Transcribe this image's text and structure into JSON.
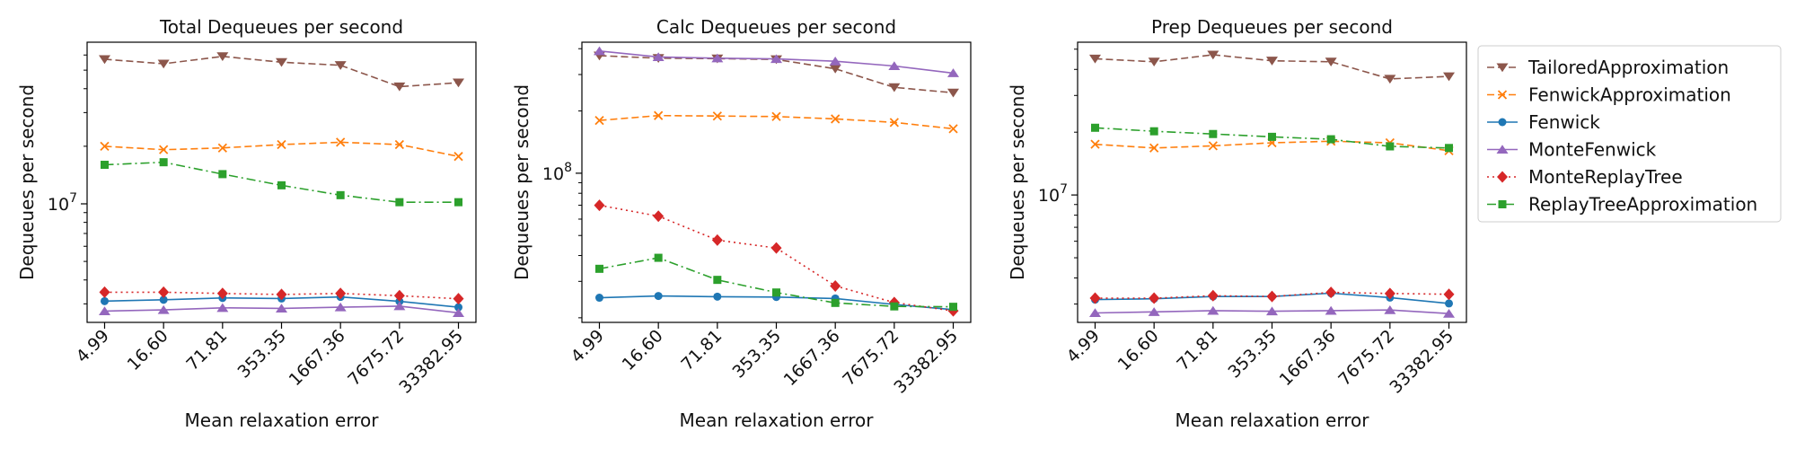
{
  "chart_data": [
    {
      "type": "line",
      "title": "Total Dequeues per second",
      "xlabel": "Mean relaxation error",
      "ylabel": "Dequeues per second",
      "yscale": "log",
      "ylim": [
        2400000,
        70000000
      ],
      "yticks": [
        {
          "value": 10000000,
          "base": "10",
          "exp": "7"
        }
      ],
      "grid": false,
      "categories": [
        "4.99",
        "16.60",
        "71.81",
        "353.35",
        "1667.36",
        "7675.72",
        "33382.95"
      ],
      "series": [
        {
          "name": "TailoredApproximation",
          "values": [
            57000000,
            54000000,
            59000000,
            55000000,
            53000000,
            41000000,
            43000000
          ]
        },
        {
          "name": "FenwickApproximation",
          "values": [
            20000000,
            19200000,
            19600000,
            20400000,
            21000000,
            20400000,
            17700000
          ]
        },
        {
          "name": "Fenwick",
          "values": [
            3100000,
            3150000,
            3220000,
            3200000,
            3260000,
            3090000,
            2880000
          ]
        },
        {
          "name": "MonteFenwick",
          "values": [
            2750000,
            2790000,
            2860000,
            2840000,
            2880000,
            2920000,
            2690000
          ]
        },
        {
          "name": "MonteReplayTree",
          "values": [
            3450000,
            3450000,
            3400000,
            3360000,
            3400000,
            3310000,
            3190000
          ]
        },
        {
          "name": "ReplayTreeApproximation",
          "values": [
            16000000,
            16500000,
            14300000,
            12500000,
            11100000,
            10200000,
            10200000
          ]
        }
      ]
    },
    {
      "type": "line",
      "title": "Calc Dequeues per second",
      "xlabel": "Mean relaxation error",
      "ylabel": "Dequeues per second",
      "yscale": "log",
      "ylim": [
        19000000,
        430000000
      ],
      "yticks": [
        {
          "value": 100000000,
          "base": "10",
          "exp": "8"
        }
      ],
      "grid": false,
      "categories": [
        "4.99",
        "16.60",
        "71.81",
        "353.35",
        "1667.36",
        "7675.72",
        "33382.95"
      ],
      "series": [
        {
          "name": "TailoredApproximation",
          "values": [
            370000000,
            360000000,
            358000000,
            355000000,
            320000000,
            260000000,
            245000000
          ]
        },
        {
          "name": "FenwickApproximation",
          "values": [
            180000000,
            190000000,
            189000000,
            188000000,
            183000000,
            176000000,
            164000000
          ]
        },
        {
          "name": "Fenwick",
          "values": [
            25000000,
            25500000,
            25300000,
            25200000,
            24800000,
            23200000,
            21900000
          ]
        },
        {
          "name": "MonteFenwick",
          "values": [
            390000000,
            365000000,
            360000000,
            357000000,
            348000000,
            330000000,
            305000000
          ]
        },
        {
          "name": "MonteReplayTree",
          "values": [
            70000000,
            62000000,
            47500000,
            43500000,
            28500000,
            23700000,
            21600000
          ]
        },
        {
          "name": "ReplayTreeApproximation",
          "values": [
            34500000,
            39000000,
            30500000,
            26500000,
            23600000,
            22700000,
            22600000
          ]
        }
      ]
    },
    {
      "type": "line",
      "title": "Prep Dequeues per second",
      "xlabel": "Mean relaxation error",
      "ylabel": "Dequeues per second",
      "yscale": "log",
      "ylim": [
        2450000,
        54000000
      ],
      "yticks": [
        {
          "value": 10000000,
          "base": "10",
          "exp": "7"
        }
      ],
      "grid": false,
      "categories": [
        "4.99",
        "16.60",
        "71.81",
        "353.35",
        "1667.36",
        "7675.72",
        "33382.95"
      ],
      "series": [
        {
          "name": "TailoredApproximation",
          "values": [
            45000000,
            43500000,
            47000000,
            44000000,
            43500000,
            36000000,
            37000000
          ]
        },
        {
          "name": "FenwickApproximation",
          "values": [
            17500000,
            16800000,
            17200000,
            17800000,
            18100000,
            17800000,
            16300000
          ]
        },
        {
          "name": "Fenwick",
          "values": [
            3150000,
            3180000,
            3260000,
            3260000,
            3380000,
            3220000,
            3020000
          ]
        },
        {
          "name": "MonteFenwick",
          "values": [
            2720000,
            2750000,
            2790000,
            2770000,
            2790000,
            2810000,
            2700000
          ]
        },
        {
          "name": "MonteReplayTree",
          "values": [
            3200000,
            3200000,
            3290000,
            3260000,
            3410000,
            3370000,
            3340000
          ]
        },
        {
          "name": "ReplayTreeApproximation",
          "values": [
            21000000,
            20200000,
            19600000,
            19000000,
            18500000,
            17100000,
            16800000
          ]
        }
      ]
    }
  ],
  "legend": {
    "placement": "right",
    "entries": [
      {
        "name": "TailoredApproximation",
        "color": "#8c564b",
        "marker": "triangle-down",
        "dash": "dashed"
      },
      {
        "name": "FenwickApproximation",
        "color": "#ff7f0e",
        "marker": "x",
        "dash": "dashed"
      },
      {
        "name": "Fenwick",
        "color": "#1f77b4",
        "marker": "circle",
        "dash": "solid"
      },
      {
        "name": "MonteFenwick",
        "color": "#9467bd",
        "marker": "triangle-up",
        "dash": "solid"
      },
      {
        "name": "MonteReplayTree",
        "color": "#d62728",
        "marker": "diamond",
        "dash": "dotted"
      },
      {
        "name": "ReplayTreeApproximation",
        "color": "#2ca02c",
        "marker": "square",
        "dash": "dashdot"
      }
    ]
  }
}
